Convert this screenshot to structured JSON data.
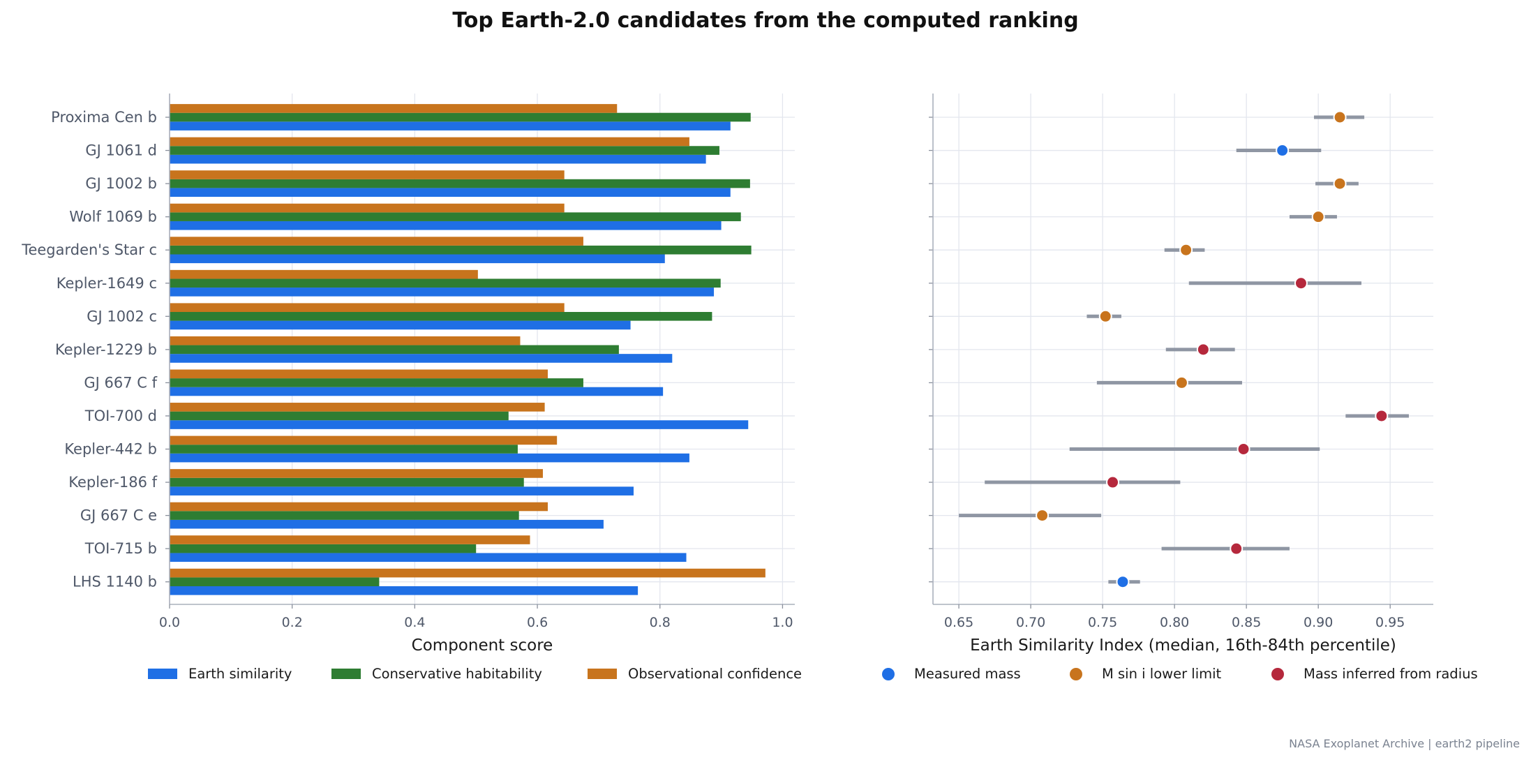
{
  "title": "Top Earth-2.0 candidates from the computed ranking",
  "footer": "NASA Exoplanet Archive | earth2 pipeline",
  "chart_data": [
    {
      "type": "bar",
      "orientation": "horizontal",
      "categories": [
        "Proxima Cen b",
        "GJ 1061 d",
        "GJ 1002 b",
        "Wolf 1069 b",
        "Teegarden's Star c",
        "Kepler-1649 c",
        "GJ 1002 c",
        "Kepler-1229 b",
        "GJ 667 C f",
        "TOI-700 d",
        "Kepler-442 b",
        "Kepler-186 f",
        "GJ 667 C e",
        "TOI-715 b",
        "LHS 1140 b"
      ],
      "series": [
        {
          "name": "Earth similarity",
          "color": "#1f6fe5",
          "values": [
            0.915,
            0.875,
            0.915,
            0.9,
            0.808,
            0.888,
            0.752,
            0.82,
            0.805,
            0.944,
            0.848,
            0.757,
            0.708,
            0.843,
            0.764
          ]
        },
        {
          "name": "Conservative habitability",
          "color": "#2e7d32",
          "values": [
            0.948,
            0.897,
            0.947,
            0.932,
            0.949,
            0.899,
            0.885,
            0.733,
            0.675,
            0.553,
            0.568,
            0.578,
            0.57,
            0.5,
            0.342
          ]
        },
        {
          "name": "Observational confidence",
          "color": "#c8741d",
          "values": [
            0.73,
            0.848,
            0.644,
            0.644,
            0.675,
            0.503,
            0.644,
            0.572,
            0.617,
            0.612,
            0.632,
            0.609,
            0.617,
            0.588,
            0.972
          ]
        }
      ],
      "xlabel": "Component score",
      "xlim": [
        0,
        1.02
      ],
      "xticks": [
        "0.0",
        "0.2",
        "0.4",
        "0.6",
        "0.8",
        "1.0"
      ],
      "grid": true,
      "legend": "bottom"
    },
    {
      "type": "scatter",
      "subtype": "dot-with-error-bars",
      "categories": [
        "Proxima Cen b",
        "GJ 1061 d",
        "GJ 1002 b",
        "Wolf 1069 b",
        "Teegarden's Star c",
        "Kepler-1649 c",
        "GJ 1002 c",
        "Kepler-1229 b",
        "GJ 667 C f",
        "TOI-700 d",
        "Kepler-442 b",
        "Kepler-186 f",
        "GJ 667 C e",
        "TOI-715 b",
        "LHS 1140 b"
      ],
      "points": [
        {
          "median": 0.915,
          "lo": 0.897,
          "hi": 0.932,
          "group": "M sin i lower limit"
        },
        {
          "median": 0.875,
          "lo": 0.843,
          "hi": 0.902,
          "group": "Measured mass"
        },
        {
          "median": 0.915,
          "lo": 0.898,
          "hi": 0.928,
          "group": "M sin i lower limit"
        },
        {
          "median": 0.9,
          "lo": 0.88,
          "hi": 0.913,
          "group": "M sin i lower limit"
        },
        {
          "median": 0.808,
          "lo": 0.793,
          "hi": 0.821,
          "group": "M sin i lower limit"
        },
        {
          "median": 0.888,
          "lo": 0.81,
          "hi": 0.93,
          "group": "Mass inferred from radius"
        },
        {
          "median": 0.752,
          "lo": 0.739,
          "hi": 0.763,
          "group": "M sin i lower limit"
        },
        {
          "median": 0.82,
          "lo": 0.794,
          "hi": 0.842,
          "group": "Mass inferred from radius"
        },
        {
          "median": 0.805,
          "lo": 0.746,
          "hi": 0.847,
          "group": "M sin i lower limit"
        },
        {
          "median": 0.944,
          "lo": 0.919,
          "hi": 0.963,
          "group": "Mass inferred from radius"
        },
        {
          "median": 0.848,
          "lo": 0.727,
          "hi": 0.901,
          "group": "Mass inferred from radius"
        },
        {
          "median": 0.757,
          "lo": 0.668,
          "hi": 0.804,
          "group": "Mass inferred from radius"
        },
        {
          "median": 0.708,
          "lo": 0.65,
          "hi": 0.749,
          "group": "M sin i lower limit"
        },
        {
          "median": 0.843,
          "lo": 0.791,
          "hi": 0.88,
          "group": "Mass inferred from radius"
        },
        {
          "median": 0.764,
          "lo": 0.754,
          "hi": 0.776,
          "group": "Measured mass"
        }
      ],
      "groups": [
        {
          "name": "Measured mass",
          "color": "#1f6fe5"
        },
        {
          "name": "M sin i lower limit",
          "color": "#c8741d"
        },
        {
          "name": "Mass inferred from radius",
          "color": "#b5283c"
        }
      ],
      "error_bar_color": "#8f96a3",
      "xlabel": "Earth Similarity Index (median, 16th-84th percentile)",
      "xlim": [
        0.632,
        0.98
      ],
      "xticks": [
        "0.65",
        "0.70",
        "0.75",
        "0.80",
        "0.85",
        "0.90",
        "0.95"
      ],
      "grid": true,
      "legend": "bottom"
    }
  ]
}
